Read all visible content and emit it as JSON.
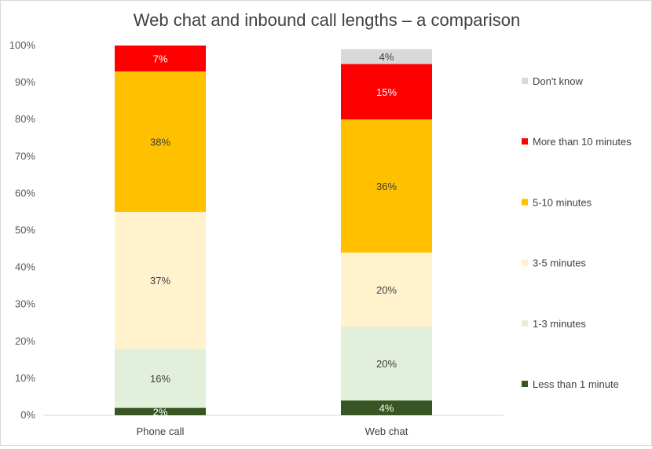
{
  "chart_data": {
    "type": "bar",
    "stacked": true,
    "title": "Web chat and inbound call lengths – a comparison",
    "categories": [
      "Phone call",
      "Web chat"
    ],
    "ylim": [
      0,
      100
    ],
    "y_ticks": [
      "0%",
      "10%",
      "20%",
      "30%",
      "40%",
      "50%",
      "60%",
      "70%",
      "80%",
      "90%",
      "100%"
    ],
    "grid": false,
    "legend_position": "right",
    "series": [
      {
        "name": "Less than 1 minute",
        "color": "#375623",
        "values": [
          2,
          4
        ],
        "labels": [
          "2%",
          "4%"
        ],
        "label_color": "#ffffff"
      },
      {
        "name": "1-3 minutes",
        "color": "#e2efda",
        "values": [
          16,
          20
        ],
        "labels": [
          "16%",
          "20%"
        ],
        "label_color": "#404040"
      },
      {
        "name": "3-5 minutes",
        "color": "#fff2cc",
        "values": [
          37,
          20
        ],
        "labels": [
          "37%",
          "20%"
        ],
        "label_color": "#404040"
      },
      {
        "name": "5-10 minutes",
        "color": "#ffc000",
        "values": [
          38,
          36
        ],
        "labels": [
          "38%",
          "36%"
        ],
        "label_color": "#404040"
      },
      {
        "name": "More than 10 minutes",
        "color": "#ff0000",
        "values": [
          7,
          15
        ],
        "labels": [
          "7%",
          "15%"
        ],
        "label_color": "#ffffff"
      },
      {
        "name": "Don't know",
        "color": "#d9d9d9",
        "values": [
          0,
          4
        ],
        "labels": [
          "",
          "4%"
        ],
        "label_color": "#404040"
      }
    ]
  }
}
